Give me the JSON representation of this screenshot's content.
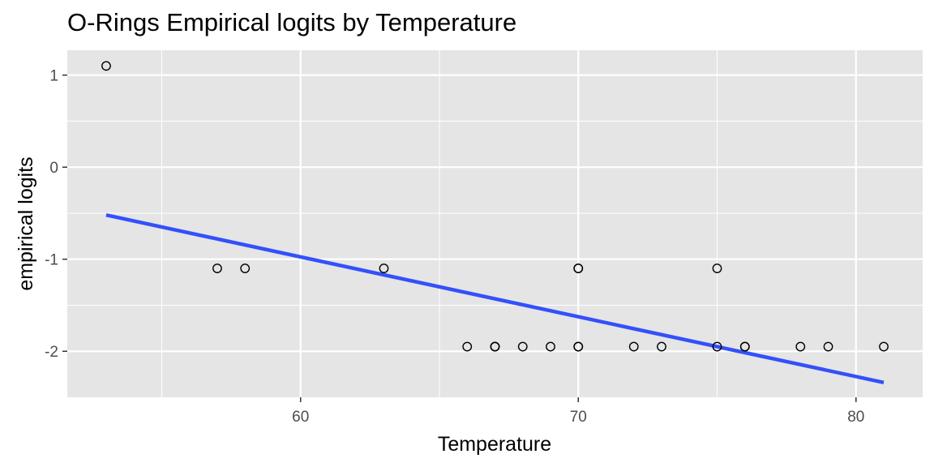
{
  "chart_data": {
    "type": "scatter",
    "title": "O-Rings Empirical logits by Temperature",
    "xlabel": "Temperature",
    "ylabel": "empirical logits",
    "xlim": [
      51.6,
      82.4
    ],
    "ylim": [
      -2.5,
      1.27
    ],
    "x_ticks": [
      60,
      70,
      80
    ],
    "x_tick_labels": [
      "60",
      "70",
      "80"
    ],
    "x_minor_ticks": [
      55,
      65,
      75
    ],
    "y_ticks": [
      1,
      0,
      -1,
      -2
    ],
    "y_tick_labels": [
      "1",
      "0",
      "-1",
      "-2"
    ],
    "y_minor_ticks": [
      0.5,
      -0.5,
      -1.5
    ],
    "grid": true,
    "panel_background": "#e5e5e5",
    "grid_color": "#ffffff",
    "point_stroke": "#000000",
    "points": [
      {
        "x": 53,
        "y": 1.1
      },
      {
        "x": 57,
        "y": -1.1
      },
      {
        "x": 58,
        "y": -1.1
      },
      {
        "x": 63,
        "y": -1.1
      },
      {
        "x": 66,
        "y": -1.95
      },
      {
        "x": 67,
        "y": -1.95
      },
      {
        "x": 67,
        "y": -1.95
      },
      {
        "x": 67,
        "y": -1.95
      },
      {
        "x": 68,
        "y": -1.95
      },
      {
        "x": 69,
        "y": -1.95
      },
      {
        "x": 70,
        "y": -1.1
      },
      {
        "x": 70,
        "y": -1.1
      },
      {
        "x": 70,
        "y": -1.95
      },
      {
        "x": 70,
        "y": -1.95
      },
      {
        "x": 72,
        "y": -1.95
      },
      {
        "x": 73,
        "y": -1.95
      },
      {
        "x": 75,
        "y": -1.1
      },
      {
        "x": 75,
        "y": -1.95
      },
      {
        "x": 76,
        "y": -1.95
      },
      {
        "x": 76,
        "y": -1.95
      },
      {
        "x": 78,
        "y": -1.95
      },
      {
        "x": 79,
        "y": -1.95
      },
      {
        "x": 81,
        "y": -1.95
      }
    ],
    "fit_line": {
      "color": "#3350fa",
      "x": [
        53,
        81
      ],
      "y": [
        -0.52,
        -2.34
      ]
    }
  }
}
